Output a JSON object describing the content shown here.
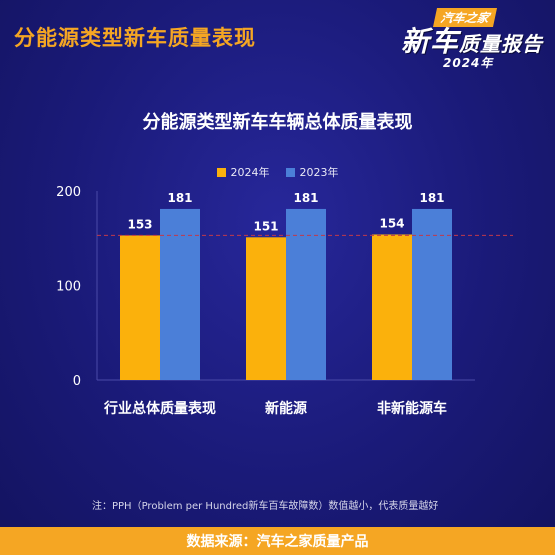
{
  "header": {
    "title": "分能源类型新车质量表现"
  },
  "logo": {
    "brand": "汽车之家",
    "main": "新车",
    "sub": "质量报告",
    "year": "2024年"
  },
  "colors": {
    "s2024": "#fbb10c",
    "s2023": "#4b7fd8",
    "ref_line": "#c0394b"
  },
  "chart_data": {
    "type": "bar",
    "title": "分能源类型新车车辆总体质量表现",
    "categories": [
      "行业总体质量表现",
      "新能源",
      "非新能源车"
    ],
    "series": [
      {
        "name": "2024年",
        "values": [
          153,
          151,
          154
        ]
      },
      {
        "name": "2023年",
        "values": [
          181,
          181,
          181
        ]
      }
    ],
    "yticks": [
      0,
      100,
      200
    ],
    "ylim": [
      0,
      200
    ],
    "reference_line": 153,
    "grid": false,
    "legend": "top-center"
  },
  "note": "注：PPH（Problem per Hundred新车百车故障数）数值越小，代表质量越好",
  "footer": "数据来源：汽车之家质量产品"
}
